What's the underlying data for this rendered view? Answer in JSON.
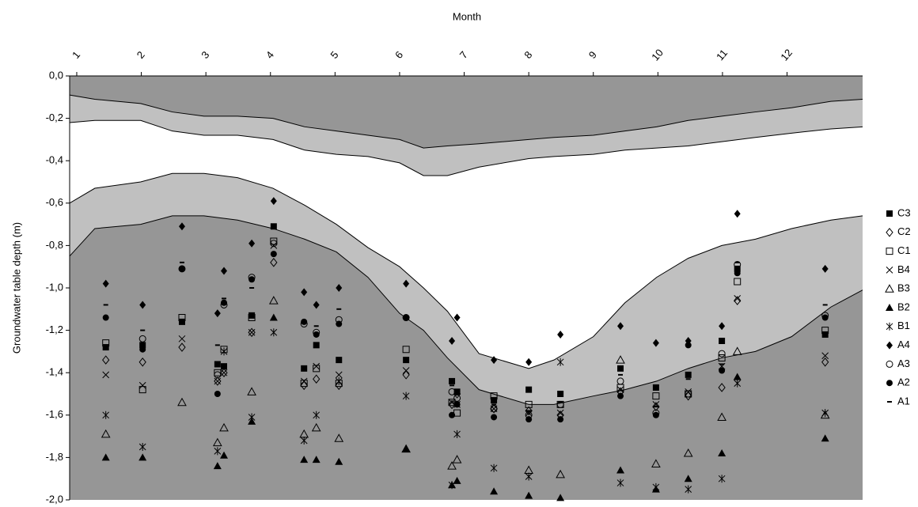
{
  "chart_data": {
    "type": "scatter",
    "x_axis_title": "Month",
    "y_axis_title": "Groundwater table depth (m)",
    "xlim": [
      0.89,
      13.17
    ],
    "xticks": [
      1,
      2,
      3,
      4,
      5,
      6,
      7,
      8,
      9,
      10,
      11,
      12
    ],
    "ylim": [
      -2.0,
      0.0
    ],
    "yticks": [
      {
        "value": 0.0,
        "label": "0,0"
      },
      {
        "value": -0.2,
        "label": "-0,2"
      },
      {
        "value": -0.4,
        "label": "-0,4"
      },
      {
        "value": -0.6,
        "label": "-0,6"
      },
      {
        "value": -0.8,
        "label": "-0,8"
      },
      {
        "value": -1.0,
        "label": "-1,0"
      },
      {
        "value": -1.2,
        "label": "-1,2"
      },
      {
        "value": -1.4,
        "label": "-1,4"
      },
      {
        "value": -1.6,
        "label": "-1,6"
      },
      {
        "value": -1.8,
        "label": "-1,8"
      },
      {
        "value": -2.0,
        "label": "-2,0"
      }
    ],
    "bands": {
      "x": [
        0.89,
        1.28,
        1.99,
        2.48,
        2.97,
        3.49,
        4.04,
        4.53,
        5.02,
        5.51,
        6.0,
        6.37,
        6.74,
        7.23,
        8.0,
        8.39,
        9.0,
        9.49,
        9.98,
        10.47,
        10.99,
        11.51,
        12.07,
        12.68,
        13.17
      ],
      "colors": [
        "#969696",
        "#c0c0c0",
        "#ffffff",
        "#c0c0c0",
        "#969696"
      ],
      "boundaries": [
        [
          -0.09,
          -0.11,
          -0.13,
          -0.17,
          -0.19,
          -0.19,
          -0.2,
          -0.24,
          -0.26,
          -0.28,
          -0.3,
          -0.34,
          -0.33,
          -0.32,
          -0.3,
          -0.29,
          -0.28,
          -0.26,
          -0.24,
          -0.21,
          -0.19,
          -0.17,
          -0.15,
          -0.12,
          -0.11
        ],
        [
          -0.22,
          -0.21,
          -0.21,
          -0.26,
          -0.28,
          -0.28,
          -0.3,
          -0.35,
          -0.37,
          -0.38,
          -0.41,
          -0.47,
          -0.47,
          -0.43,
          -0.39,
          -0.38,
          -0.37,
          -0.35,
          -0.34,
          -0.33,
          -0.31,
          -0.29,
          -0.27,
          -0.25,
          -0.24
        ],
        [
          -0.6,
          -0.53,
          -0.5,
          -0.46,
          -0.46,
          -0.48,
          -0.53,
          -0.61,
          -0.7,
          -0.81,
          -0.9,
          -1.0,
          -1.11,
          -1.31,
          -1.38,
          -1.34,
          -1.23,
          -1.07,
          -0.95,
          -0.86,
          -0.8,
          -0.77,
          -0.72,
          -0.68,
          -0.66
        ],
        [
          -0.85,
          -0.72,
          -0.7,
          -0.66,
          -0.66,
          -0.68,
          -0.72,
          -0.77,
          -0.83,
          -0.95,
          -1.12,
          -1.2,
          -1.33,
          -1.48,
          -1.55,
          -1.55,
          -1.51,
          -1.48,
          -1.44,
          -1.38,
          -1.33,
          -1.3,
          -1.23,
          -1.09,
          -1.01
        ]
      ]
    },
    "x": [
      1.45,
      2.02,
      2.63,
      3.18,
      3.28,
      3.71,
      4.05,
      4.52,
      4.71,
      5.06,
      6.1,
      6.81,
      6.89,
      7.46,
      8.0,
      8.49,
      9.42,
      9.97,
      10.47,
      10.99,
      11.23,
      12.59
    ],
    "series": [
      {
        "name": "C3",
        "marker": "square-filled",
        "values": [
          -1.28,
          -1.27,
          -1.16,
          -1.36,
          -1.37,
          -1.13,
          -0.71,
          -1.38,
          -1.27,
          -1.34,
          -1.34,
          -1.44,
          -1.49,
          -1.53,
          -1.48,
          -1.5,
          -1.38,
          -1.47,
          -1.41,
          -1.25,
          -0.91,
          -1.22
        ]
      },
      {
        "name": "C2",
        "marker": "diamond-open",
        "values": [
          -1.34,
          -1.35,
          -1.28,
          -1.44,
          -1.4,
          -1.21,
          -0.88,
          -1.46,
          -1.43,
          -1.46,
          -1.41,
          -1.55,
          -1.5,
          -1.57,
          -1.58,
          -1.6,
          -1.49,
          -1.56,
          -1.51,
          -1.47,
          -1.06,
          -1.35
        ]
      },
      {
        "name": "C1",
        "marker": "square-open",
        "values": [
          -1.26,
          -1.48,
          -1.14,
          -1.4,
          -1.29,
          -1.14,
          -0.78,
          -1.45,
          -1.38,
          -1.45,
          -1.29,
          -1.54,
          -1.59,
          -1.51,
          -1.55,
          -1.55,
          -1.47,
          -1.51,
          -1.5,
          -1.33,
          -0.97,
          -1.2
        ]
      },
      {
        "name": "B4",
        "marker": "x",
        "values": [
          -1.41,
          -1.46,
          -1.24,
          -1.44,
          -1.4,
          -1.21,
          -0.8,
          -1.44,
          -1.37,
          -1.41,
          -1.39,
          -1.54,
          -1.55,
          -1.57,
          -1.59,
          -1.59,
          -1.48,
          -1.55,
          -1.49,
          -1.37,
          -1.05,
          -1.32
        ]
      },
      {
        "name": "B3",
        "marker": "triangle-open",
        "values": [
          -1.69,
          null,
          -1.54,
          -1.73,
          -1.66,
          -1.49,
          -1.06,
          -1.69,
          -1.66,
          -1.71,
          -1.76,
          -1.84,
          -1.81,
          null,
          -1.86,
          -1.88,
          -1.34,
          -1.83,
          -1.78,
          -1.61,
          -1.3,
          -1.6
        ]
      },
      {
        "name": "B2",
        "marker": "triangle-filled",
        "values": [
          -1.8,
          -1.8,
          null,
          -1.84,
          -1.79,
          -1.63,
          -1.14,
          -1.81,
          -1.81,
          -1.82,
          -1.76,
          -1.93,
          -1.91,
          -1.96,
          -1.98,
          -1.99,
          -1.86,
          -1.95,
          -1.9,
          -1.78,
          -1.42,
          -1.71
        ]
      },
      {
        "name": "B1",
        "marker": "asterisk",
        "values": [
          -1.6,
          -1.75,
          null,
          -1.77,
          -1.3,
          -1.61,
          -1.21,
          -1.72,
          -1.6,
          -1.44,
          -1.51,
          -1.93,
          -1.69,
          -1.85,
          -1.89,
          -1.35,
          -1.92,
          -1.94,
          -1.95,
          -1.9,
          -1.45,
          -1.59
        ]
      },
      {
        "name": "A4",
        "marker": "diamond-filled",
        "values": [
          -0.98,
          -1.08,
          -0.71,
          -1.12,
          -0.92,
          -0.79,
          -0.59,
          -1.02,
          -1.08,
          -1.0,
          -0.98,
          -1.25,
          -1.14,
          -1.34,
          -1.35,
          -1.22,
          -1.18,
          -1.26,
          -1.25,
          -1.18,
          -0.65,
          -0.91
        ]
      },
      {
        "name": "A3",
        "marker": "circle-open",
        "values": [
          null,
          -1.24,
          -0.91,
          -1.41,
          -1.08,
          -0.95,
          -0.79,
          -1.17,
          -1.21,
          -1.15,
          -1.14,
          -1.49,
          -1.52,
          -1.57,
          -1.6,
          -1.55,
          -1.44,
          -1.59,
          -1.5,
          -1.31,
          -0.89,
          -1.13
        ]
      },
      {
        "name": "A2",
        "marker": "circle-filled",
        "values": [
          -1.14,
          -1.29,
          -0.91,
          -1.5,
          -1.07,
          -0.96,
          -0.84,
          -1.16,
          -1.22,
          -1.17,
          -1.14,
          -1.6,
          -1.55,
          -1.61,
          -1.62,
          -1.62,
          -1.51,
          -1.6,
          -1.27,
          -1.39,
          -0.93,
          -1.14
        ]
      },
      {
        "name": "A1",
        "marker": "dash",
        "values": [
          -1.08,
          -1.2,
          -0.88,
          -1.27,
          -1.05,
          -1.0,
          -0.72,
          -1.16,
          -1.18,
          -1.1,
          -1.14,
          -1.46,
          -1.54,
          -1.55,
          -1.58,
          -1.54,
          -1.41,
          -1.56,
          -1.43,
          -1.36,
          -0.88,
          -1.08
        ]
      }
    ]
  }
}
